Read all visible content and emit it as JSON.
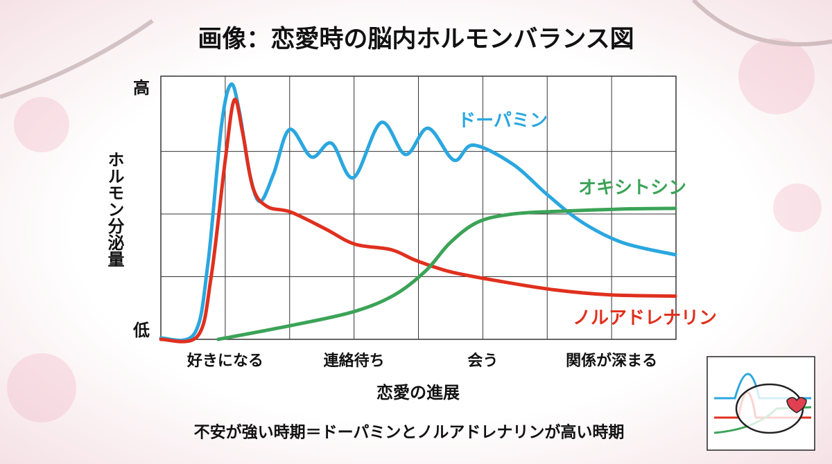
{
  "chart_data": {
    "type": "line",
    "title": "画像：恋愛時の脳内ホルモンバランス図",
    "y_label": "ホルモン分泌量",
    "x_label": "恋愛の進展",
    "footnote": "不安が強い時期＝ドーパミンとノルアドレナリンが高い時期",
    "xlim": [
      0,
      8
    ],
    "ylim": [
      0,
      4.2
    ],
    "xticks": [
      {
        "value": 1,
        "label": "好きになる"
      },
      {
        "value": 3,
        "label": "連絡待ち"
      },
      {
        "value": 5,
        "label": "会う"
      },
      {
        "value": 7,
        "label": "関係が深まる"
      }
    ],
    "yticks": [
      {
        "value": 0,
        "label": "低"
      },
      {
        "value": 4,
        "label": "高"
      }
    ],
    "xgrid": [
      1,
      2,
      3,
      4,
      5,
      6,
      7
    ],
    "ygrid": [
      1,
      2,
      3
    ],
    "grid": true,
    "series": [
      {
        "name": "ドーパミン",
        "color": "#2aa7df",
        "x": [
          0,
          0.52,
          0.73,
          0.94,
          1.09,
          1.22,
          1.38,
          1.54,
          1.75,
          2.0,
          2.34,
          2.65,
          2.99,
          3.42,
          3.8,
          4.15,
          4.55,
          4.85,
          5.46,
          6.0,
          6.54,
          7.18,
          7.99
        ],
        "values": [
          0.02,
          0.09,
          1.2,
          3.4,
          4.07,
          3.63,
          2.64,
          2.2,
          2.64,
          3.35,
          2.91,
          3.13,
          2.58,
          3.46,
          2.95,
          3.37,
          2.86,
          3.1,
          2.8,
          2.31,
          1.87,
          1.54,
          1.35
        ]
      },
      {
        "name": "ノルアドレナリン",
        "color": "#e0301e",
        "x": [
          0,
          0.57,
          0.78,
          1.0,
          1.14,
          1.27,
          1.43,
          1.65,
          2.02,
          2.56,
          3.01,
          3.58,
          3.96,
          4.49,
          5.25,
          6.11,
          6.97,
          7.99
        ],
        "values": [
          0,
          0.05,
          0.99,
          2.86,
          3.82,
          3.3,
          2.42,
          2.12,
          2.03,
          1.76,
          1.52,
          1.43,
          1.26,
          1.08,
          0.93,
          0.79,
          0.71,
          0.69
        ]
      },
      {
        "name": "オキシトシン",
        "color": "#3ba357",
        "x": [
          0.89,
          2.02,
          2.99,
          3.63,
          4.12,
          4.49,
          4.92,
          5.46,
          6.11,
          7.18,
          7.99
        ],
        "values": [
          0,
          0.22,
          0.44,
          0.71,
          1.1,
          1.54,
          1.87,
          2.0,
          2.04,
          2.08,
          2.09
        ]
      }
    ]
  }
}
